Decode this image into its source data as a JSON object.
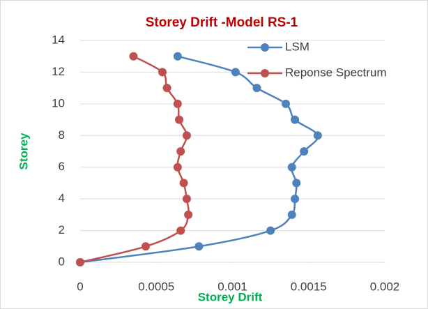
{
  "chart_data": {
    "type": "scatter",
    "title": "Storey Drift -Model RS-1",
    "x_label": "Storey Drift",
    "y_label": "Storey",
    "series": [
      {
        "name": "LSM",
        "color": "#4f81bd",
        "x": [
          0,
          0.00078,
          0.00125,
          0.00139,
          0.00141,
          0.00142,
          0.00139,
          0.00147,
          0.00156,
          0.00141,
          0.00135,
          0.00116,
          0.00102,
          0.00064
        ],
        "values": [
          0,
          1,
          2,
          3,
          4,
          5,
          6,
          7,
          8,
          9,
          10,
          11,
          12,
          13
        ]
      },
      {
        "name": "Reponse Spectrum",
        "color": "#c0504d",
        "x": [
          0,
          0.00043,
          0.00066,
          0.00071,
          0.0007,
          0.00068,
          0.00064,
          0.00066,
          0.0007,
          0.00065,
          0.00064,
          0.00057,
          0.00054,
          0.00035
        ],
        "values": [
          0,
          1,
          2,
          3,
          4,
          5,
          6,
          7,
          8,
          9,
          10,
          11,
          12,
          13
        ]
      }
    ],
    "xlim": [
      0,
      0.002
    ],
    "xticks": [
      0,
      0.0005,
      0.001,
      0.0015,
      0.002
    ],
    "ylim": [
      0,
      14
    ],
    "yticks": [
      0,
      2,
      4,
      6,
      8,
      10,
      12,
      14
    ],
    "grid": true,
    "smooth": true,
    "legend": "top-right"
  }
}
